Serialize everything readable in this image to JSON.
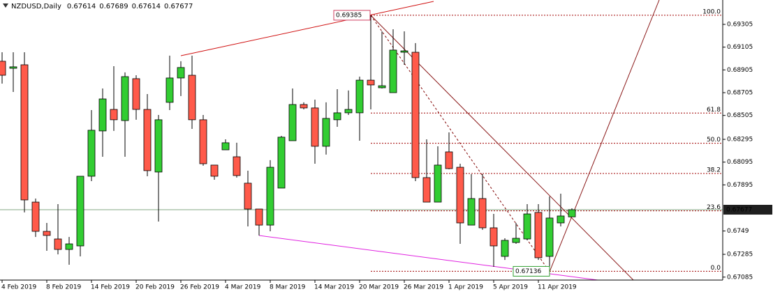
{
  "chart_data": {
    "type": "candlestick",
    "title": "NZDUSD,Daily",
    "categories": [
      "4 Feb 2019",
      null,
      null,
      null,
      "8 Feb 2019",
      null,
      null,
      null,
      "14 Feb 2019",
      null,
      null,
      null,
      "20 Feb 2019",
      null,
      null,
      null,
      "26 Feb 2019",
      null,
      null,
      null,
      "4 Mar 2019",
      null,
      null,
      null,
      "8 Mar 2019",
      null,
      null,
      null,
      "14 Mar 2019",
      null,
      null,
      null,
      "20 Mar 2019",
      null,
      null,
      null,
      "26 Mar 2019",
      null,
      null,
      null,
      "1 Apr 2019",
      null,
      null,
      null,
      "5 Apr 2019",
      null,
      null,
      null,
      "11 Apr 2019",
      null,
      null,
      null
    ],
    "open": [
      0.68981,
      0.68919,
      0.6895,
      0.67744,
      0.67487,
      0.6742,
      0.67328,
      0.67359,
      0.67971,
      0.68369,
      0.68558,
      0.6846,
      0.68828,
      0.68558,
      0.68008,
      0.6862,
      0.68834,
      0.68858,
      0.68467,
      0.68069,
      0.68203,
      0.68142,
      0.6791,
      0.67683,
      0.67542,
      0.67867,
      0.68283,
      0.68601,
      0.68571,
      0.68234,
      0.68467,
      0.68528,
      0.68528,
      0.68815,
      0.68748,
      0.68705,
      0.6906,
      0.6906,
      0.67959,
      0.67744,
      0.68185,
      0.6805,
      0.67542,
      0.67775,
      0.67518,
      0.67267,
      0.67389,
      0.6742,
      0.67653,
      0.67267,
      0.67561,
      0.67614
    ],
    "high": [
      0.6906,
      0.6906,
      0.6906,
      0.67775,
      0.67561,
      0.67726,
      0.67438,
      0.67971,
      0.68552,
      0.68742,
      0.68938,
      0.68883,
      0.68858,
      0.68693,
      0.68509,
      0.6903,
      0.68981,
      0.6903,
      0.68509,
      0.68069,
      0.68295,
      0.68265,
      0.6802,
      0.67683,
      0.68112,
      0.68326,
      0.68742,
      0.6862,
      0.68644,
      0.6862,
      0.68736,
      0.68724,
      0.68846,
      0.69385,
      0.69244,
      0.69262,
      0.69244,
      0.6914,
      0.68295,
      0.68234,
      0.68356,
      0.68081,
      0.67989,
      0.67989,
      0.6764,
      0.67426,
      0.67561,
      0.67726,
      0.67726,
      0.67793,
      0.67818,
      0.67689
    ],
    "low": [
      0.68785,
      0.68711,
      0.67653,
      0.67438,
      0.67316,
      0.67285,
      0.67194,
      0.67267,
      0.67928,
      0.68142,
      0.68369,
      0.68142,
      0.68467,
      0.67971,
      0.67573,
      0.68552,
      0.68675,
      0.68387,
      0.68063,
      0.6794,
      0.68203,
      0.67959,
      0.6753,
      0.67451,
      0.67487,
      0.67867,
      0.68283,
      0.68558,
      0.68081,
      0.68161,
      0.68405,
      0.68509,
      0.68283,
      0.68558,
      0.68742,
      0.68705,
      0.6895,
      0.67928,
      0.67744,
      0.67744,
      0.68032,
      0.67377,
      0.67542,
      0.675,
      0.67175,
      0.67236,
      0.67377,
      0.67408,
      0.67236,
      0.67136,
      0.6753,
      0.67614
    ],
    "close": [
      0.68858,
      0.68932,
      0.67763,
      0.67487,
      0.67451,
      0.67328,
      0.67377,
      0.67971,
      0.68375,
      0.6865,
      0.68467,
      0.68846,
      0.68558,
      0.6802,
      0.68467,
      0.68834,
      0.68926,
      0.68467,
      0.68081,
      0.67971,
      0.68265,
      0.67977,
      0.67683,
      0.67542,
      0.6805,
      0.68314,
      0.68601,
      0.68571,
      0.68234,
      0.68479,
      0.68528,
      0.68558,
      0.68815,
      0.68773,
      0.68766,
      0.69079,
      0.69072,
      0.67959,
      0.67744,
      0.68069,
      0.68038,
      0.67561,
      0.67775,
      0.67518,
      0.67359,
      0.67408,
      0.67426,
      0.6764,
      0.67255,
      0.67604,
      0.67622,
      0.67677
    ],
    "up_color": "#32cd32",
    "down_color": "#ff5a4a",
    "ylim": [
      0.67059,
      0.69519
    ],
    "yticks": [
      0.69305,
      0.69105,
      0.68905,
      0.68705,
      0.68505,
      0.68295,
      0.68095,
      0.67895,
      0.6749,
      0.67285,
      0.67085
    ],
    "fibonacci": {
      "high": 0.69385,
      "low": 0.67136,
      "color": "#a00000",
      "levels": [
        {
          "value": 100,
          "label": "100.0"
        },
        61.8,
        {
          "value": 50,
          "label": "50.0"
        },
        38.2,
        23.6,
        {
          "value": 0,
          "label": "0.0"
        }
      ]
    }
  }
}
